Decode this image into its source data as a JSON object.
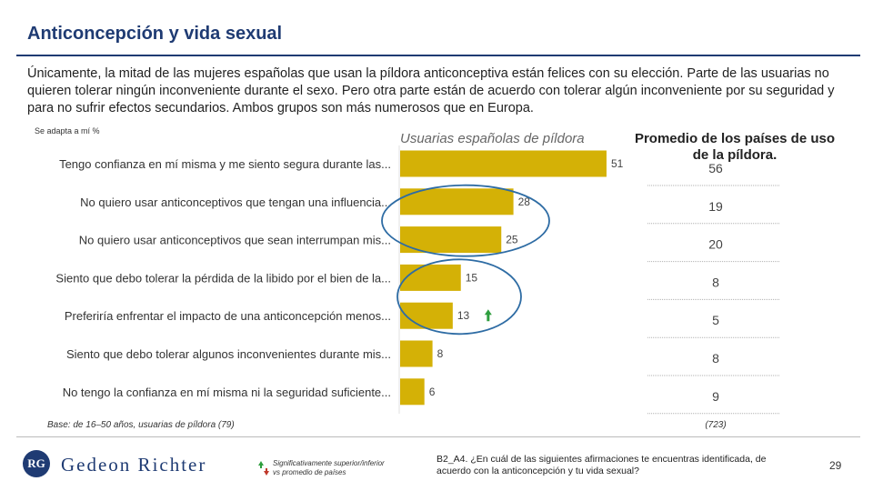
{
  "header": {
    "title": "Anticoncepción y vida sexual",
    "intro": "Únicamente, la mitad de las mujeres españolas que usan la píldora anticonceptiva están felices con su elección. Parte de las usuarias no quieren tolerar ningún inconveniente durante el sexo. Pero otra parte están de acuerdo con tolerar algún inconveniente por su seguridad y para no sufrir efectos secundarios. Ambos grupos son más numerosos que en Europa.",
    "note": "Se adapta a mí %"
  },
  "chart_data": {
    "type": "bar",
    "orientation": "horizontal",
    "categories": [
      "Tengo confianza en mí misma y me siento segura durante las...",
      "No quiero usar anticonceptivos que tengan una influencia...",
      "No quiero usar anticonceptivos que sean interrumpan mis...",
      "Siento que debo tolerar la pérdida de la libido por el bien de la...",
      "Preferiría enfrentar el impacto de una anticoncepción menos...",
      "Siento que debo tolerar algunos inconvenientes durante mis...",
      "No tengo la confianza en mí misma ni la seguridad suficiente..."
    ],
    "series": [
      {
        "name": "Usuarias españolas de píldora",
        "values": [
          51,
          28,
          25,
          15,
          13,
          8,
          6
        ]
      }
    ],
    "comparison": {
      "name": "Promedio de los países de uso de la píldora.",
      "values": [
        56,
        19,
        20,
        8,
        5,
        8,
        9
      ]
    },
    "significance": [
      null,
      null,
      null,
      null,
      "higher",
      null,
      null
    ],
    "xlim": [
      0,
      60
    ],
    "bar_color": "#d4b106",
    "highlight_color": "#2e6ca4",
    "significance_up_color": "#2e9e3e",
    "significance_down_color": "#c0392b"
  },
  "base": {
    "text": "Base: de 16–50 años, usuarias de píldora (79)",
    "avg_n": "(723)"
  },
  "footer": {
    "logo_initials": "RG",
    "logo_text": "Gedeon Richter",
    "legend_line1": "Significativamente superior/inferior",
    "legend_line2": "vs promedio de países",
    "question": "B2_A4. ¿En cuál de las siguientes afirmaciones te encuentras identificada, de acuerdo con la anticoncepción y tu vida sexual?",
    "page_number": "29"
  }
}
